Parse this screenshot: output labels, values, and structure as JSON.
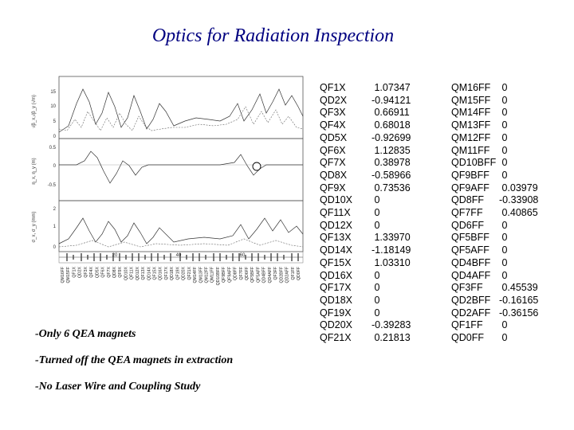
{
  "title": "Optics for Radiation Inspection",
  "bullets": [
    "-Only 6 QEA magnets",
    "-Turned off the QEA magnets in extraction",
    "-No Laser Wire and Coupling Study"
  ],
  "table_left": [
    {
      "name": "QF1X",
      "value": " 1.07347"
    },
    {
      "name": "QD2X",
      "value": "-0.94121"
    },
    {
      "name": "QF3X",
      "value": " 0.66911"
    },
    {
      "name": "QF4X",
      "value": " 0.68018"
    },
    {
      "name": "QD5X",
      "value": "-0.92699"
    },
    {
      "name": "QF6X",
      "value": " 1.12835"
    },
    {
      "name": "QF7X",
      "value": " 0.38978"
    },
    {
      "name": "QD8X",
      "value": "-0.58966"
    },
    {
      "name": "QF9X",
      "value": " 0.73536"
    },
    {
      "name": "QD10X",
      "value": " 0"
    },
    {
      "name": "QF11X",
      "value": " 0"
    },
    {
      "name": "QD12X",
      "value": " 0"
    },
    {
      "name": "QF13X",
      "value": " 1.33970"
    },
    {
      "name": "QD14X",
      "value": "-1.18149"
    },
    {
      "name": "QF15X",
      "value": " 1.03310"
    },
    {
      "name": "QD16X",
      "value": " 0"
    },
    {
      "name": "QF17X",
      "value": " 0"
    },
    {
      "name": "QD18X",
      "value": " 0"
    },
    {
      "name": "QF19X",
      "value": " 0"
    },
    {
      "name": "QD20X",
      "value": "-0.39283"
    },
    {
      "name": "QF21X",
      "value": " 0.21813"
    }
  ],
  "table_right": [
    {
      "name": "QM16FF",
      "value": " 0"
    },
    {
      "name": "QM15FF",
      "value": " 0"
    },
    {
      "name": "QM14FF",
      "value": " 0"
    },
    {
      "name": "QM13FF",
      "value": " 0"
    },
    {
      "name": "QM12FF",
      "value": " 0"
    },
    {
      "name": "QM11FF",
      "value": " 0"
    },
    {
      "name": "QD10BFF",
      "value": " 0"
    },
    {
      "name": "QF9BFF",
      "value": " 0"
    },
    {
      "name": "QF9AFF",
      "value": " 0.03979"
    },
    {
      "name": "QD8FF",
      "value": "-0.33908"
    },
    {
      "name": "QF7FF",
      "value": " 0.40865"
    },
    {
      "name": "QD6FF",
      "value": " 0"
    },
    {
      "name": "QF5BFF",
      "value": " 0"
    },
    {
      "name": "QF5AFF",
      "value": " 0"
    },
    {
      "name": "QD4BFF",
      "value": " 0"
    },
    {
      "name": "QD4AFF",
      "value": " 0"
    },
    {
      "name": "QF3FF",
      "value": " 0.45539"
    },
    {
      "name": "QD2BFF",
      "value": "-0.16165"
    },
    {
      "name": "QD2AFF",
      "value": "-0.36156"
    },
    {
      "name": "QF1FF",
      "value": " 0"
    },
    {
      "name": "QD0FF",
      "value": " 0"
    }
  ],
  "plot": {
    "panel1": {
      "ylabel": "√β_x,√β_y (√m)",
      "ticks": [
        "15",
        "10",
        "5",
        "0"
      ]
    },
    "panel2": {
      "ylabel": "η_x, η_y (m)",
      "ticks": [
        "0.5",
        "0",
        "-0.5"
      ]
    },
    "panel3": {
      "ylabel": "σ_x, σ_y (mm)",
      "ticks": [
        "2",
        "1",
        "0"
      ]
    },
    "xticks": [
      "20",
      "40",
      "60"
    ],
    "element_labels": [
      "QM16FF",
      "QM15FF",
      "QF1X",
      "QD2X",
      "QF3X",
      "QF4X",
      "QD5X",
      "QF6X",
      "QF7X",
      "QD8X",
      "QF9X",
      "QD10X",
      "QF11X",
      "QD12X",
      "QF13X",
      "QD14X",
      "QF15X",
      "QD16X",
      "QF17X",
      "QD18X",
      "QF19X",
      "QD20X",
      "QF21X",
      "QM14FF",
      "QM13FF",
      "QM12FF",
      "QM11FF",
      "QD10BFF",
      "QF9BFF",
      "QF9AFF",
      "QD8FF",
      "QF7FF",
      "QD6FF",
      "QF5BFF",
      "QF5AFF",
      "QD4BFF",
      "QD4AFF",
      "QF3FF",
      "QD2BFF",
      "QD2AFF",
      "QF1FF",
      "QD0FF"
    ]
  }
}
